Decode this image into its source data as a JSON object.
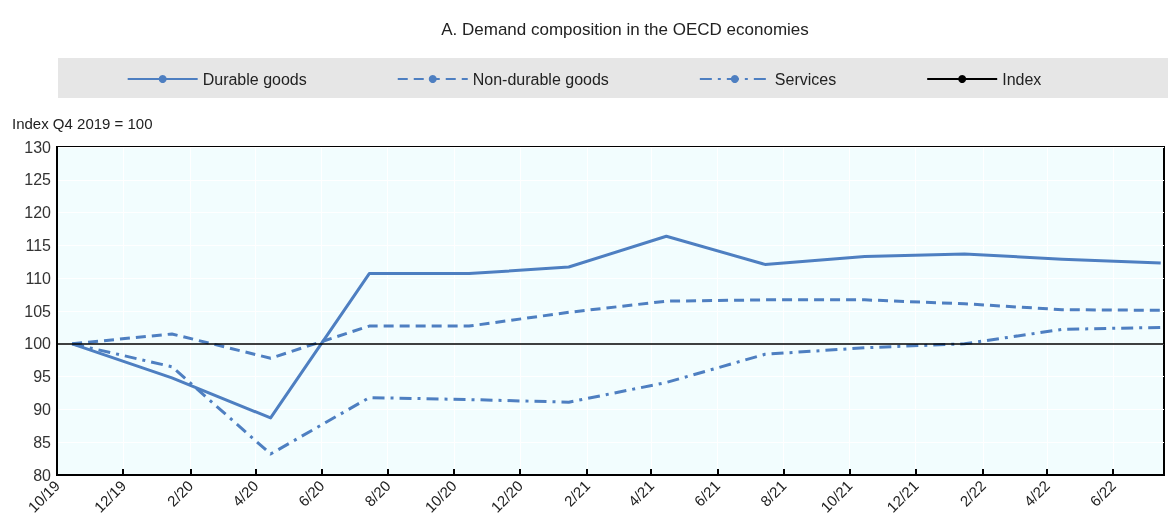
{
  "chart_data": {
    "type": "line",
    "title": "A. Demand composition in the OECD economies",
    "ylabel": "Index Q4 2019 = 100",
    "x": [
      "2019-10-15",
      "2020-01-15",
      "2020-04-15",
      "2020-07-15",
      "2020-10-15",
      "2021-01-15",
      "2021-04-15",
      "2021-07-15",
      "2021-10-15",
      "2022-01-15",
      "2022-04-15",
      "2022-07-15"
    ],
    "series": [
      {
        "name": "Durable goods",
        "color": "#4e7fc1",
        "line_style": "solid",
        "values": [
          100,
          94.8,
          88.7,
          110.7,
          110.7,
          111.7,
          116.4,
          112.1,
          113.3,
          113.7,
          112.9,
          112.3
        ]
      },
      {
        "name": "Non-durable goods",
        "color": "#4e7fc1",
        "line_style": "dashed",
        "values": [
          100,
          101.5,
          97.8,
          102.7,
          102.7,
          104.8,
          106.5,
          106.7,
          106.7,
          106.1,
          105.2,
          105.1
        ]
      },
      {
        "name": "Services",
        "color": "#4e7fc1",
        "line_style": "dashdot",
        "values": [
          100,
          96.5,
          83.2,
          91.8,
          91.5,
          91.1,
          94.1,
          98.4,
          99.4,
          100,
          102.2,
          102.5
        ]
      }
    ],
    "ref_lines": [
      {
        "axis": "y",
        "value": 100,
        "label": "Index",
        "color": "#000000"
      }
    ],
    "xlim": [
      "2019-10-01",
      "2022-07-18"
    ],
    "xticks": [
      {
        "value": "2019-10",
        "label": "10/19"
      },
      {
        "value": "2019-12",
        "label": "12/19"
      },
      {
        "value": "2020-02",
        "label": "2/20"
      },
      {
        "value": "2020-04",
        "label": "4/20"
      },
      {
        "value": "2020-06",
        "label": "6/20"
      },
      {
        "value": "2020-08",
        "label": "8/20"
      },
      {
        "value": "2020-10",
        "label": "10/20"
      },
      {
        "value": "2020-12",
        "label": "12/20"
      },
      {
        "value": "2021-02",
        "label": "2/21"
      },
      {
        "value": "2021-04",
        "label": "4/21"
      },
      {
        "value": "2021-06",
        "label": "6/21"
      },
      {
        "value": "2021-08",
        "label": "8/21"
      },
      {
        "value": "2021-10",
        "label": "10/21"
      },
      {
        "value": "2021-12",
        "label": "12/21"
      },
      {
        "value": "2022-02",
        "label": "2/22"
      },
      {
        "value": "2022-04",
        "label": "4/22"
      },
      {
        "value": "2022-06",
        "label": "6/22"
      }
    ],
    "ylim": [
      80,
      130
    ],
    "yticks": [
      80,
      85,
      90,
      95,
      100,
      105,
      110,
      115,
      120,
      125,
      130
    ],
    "grid": true,
    "legend": "top",
    "marker": "none"
  }
}
